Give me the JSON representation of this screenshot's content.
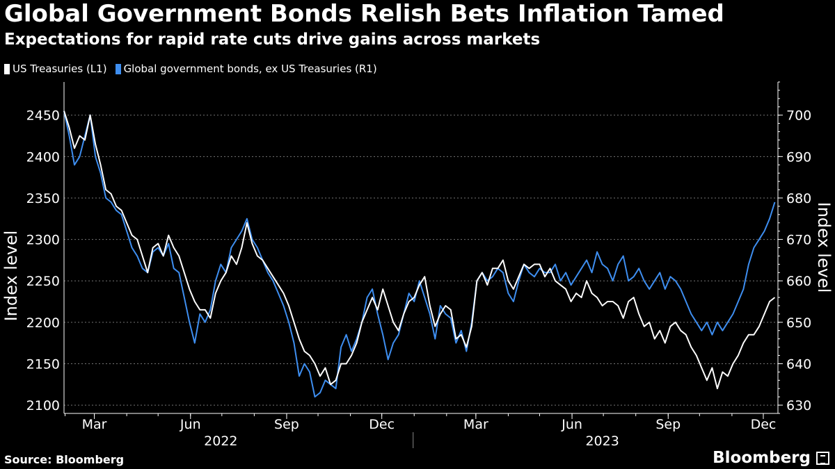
{
  "chart_data": {
    "type": "line",
    "title": "Global Government Bonds Relish Bets Inflation Tamed",
    "subtitle": "Expectations for rapid rate cuts drive gains across markets",
    "ylabel_left": "Index level",
    "ylabel_right": "Index level",
    "ylim_left": [
      2090,
      2490
    ],
    "ylim_right": [
      628,
      708
    ],
    "yticks_left": [
      2100,
      2150,
      2200,
      2250,
      2300,
      2350,
      2400,
      2450
    ],
    "yticks_right": [
      630,
      640,
      650,
      660,
      670,
      680,
      690,
      700
    ],
    "xlim": [
      "2022-01-31",
      "2023-12-15"
    ],
    "xticks": [
      {
        "date": "2022-03-01",
        "label": "Mar"
      },
      {
        "date": "2022-06-01",
        "label": "Jun"
      },
      {
        "date": "2022-09-01",
        "label": "Sep"
      },
      {
        "date": "2022-12-01",
        "label": "Dec"
      },
      {
        "date": "2023-03-01",
        "label": "Mar"
      },
      {
        "date": "2023-06-01",
        "label": "Jun"
      },
      {
        "date": "2023-09-01",
        "label": "Sep"
      },
      {
        "date": "2023-12-01",
        "label": "Dec"
      }
    ],
    "years": [
      {
        "label": "2022",
        "center": "2022-06-30"
      },
      {
        "label": "2023",
        "center": "2023-06-30"
      }
    ],
    "year_divider": "2022-12-31",
    "grid": true,
    "legend_position": "top-left",
    "series": [
      {
        "name": "US Treasuries (L1)",
        "axis": "left",
        "color": "#ffffff",
        "x": [
          "2022-01-31",
          "2022-02-05",
          "2022-02-10",
          "2022-02-15",
          "2022-02-20",
          "2022-02-25",
          "2022-03-02",
          "2022-03-07",
          "2022-03-12",
          "2022-03-17",
          "2022-03-22",
          "2022-03-27",
          "2022-04-01",
          "2022-04-06",
          "2022-04-11",
          "2022-04-16",
          "2022-04-21",
          "2022-04-26",
          "2022-05-01",
          "2022-05-06",
          "2022-05-11",
          "2022-05-16",
          "2022-05-21",
          "2022-05-26",
          "2022-05-31",
          "2022-06-05",
          "2022-06-10",
          "2022-06-15",
          "2022-06-20",
          "2022-06-25",
          "2022-06-30",
          "2022-07-05",
          "2022-07-10",
          "2022-07-15",
          "2022-07-20",
          "2022-07-25",
          "2022-07-30",
          "2022-08-04",
          "2022-08-09",
          "2022-08-14",
          "2022-08-19",
          "2022-08-24",
          "2022-08-29",
          "2022-09-03",
          "2022-09-08",
          "2022-09-13",
          "2022-09-18",
          "2022-09-23",
          "2022-09-28",
          "2022-10-03",
          "2022-10-08",
          "2022-10-13",
          "2022-10-18",
          "2022-10-23",
          "2022-10-28",
          "2022-11-02",
          "2022-11-07",
          "2022-11-12",
          "2022-11-17",
          "2022-11-22",
          "2022-11-27",
          "2022-12-02",
          "2022-12-07",
          "2022-12-12",
          "2022-12-17",
          "2022-12-22",
          "2022-12-27",
          "2023-01-01",
          "2023-01-06",
          "2023-01-11",
          "2023-01-16",
          "2023-01-21",
          "2023-01-26",
          "2023-01-31",
          "2023-02-05",
          "2023-02-10",
          "2023-02-15",
          "2023-02-20",
          "2023-02-25",
          "2023-03-02",
          "2023-03-07",
          "2023-03-12",
          "2023-03-17",
          "2023-03-22",
          "2023-03-27",
          "2023-04-01",
          "2023-04-06",
          "2023-04-11",
          "2023-04-16",
          "2023-04-21",
          "2023-04-26",
          "2023-05-01",
          "2023-05-06",
          "2023-05-11",
          "2023-05-16",
          "2023-05-21",
          "2023-05-26",
          "2023-05-31",
          "2023-06-05",
          "2023-06-10",
          "2023-06-15",
          "2023-06-20",
          "2023-06-25",
          "2023-06-30",
          "2023-07-05",
          "2023-07-10",
          "2023-07-15",
          "2023-07-20",
          "2023-07-25",
          "2023-07-30",
          "2023-08-04",
          "2023-08-09",
          "2023-08-14",
          "2023-08-19",
          "2023-08-24",
          "2023-08-29",
          "2023-09-03",
          "2023-09-08",
          "2023-09-13",
          "2023-09-18",
          "2023-09-23",
          "2023-09-28",
          "2023-10-03",
          "2023-10-08",
          "2023-10-13",
          "2023-10-18",
          "2023-10-23",
          "2023-10-28",
          "2023-11-02",
          "2023-11-07",
          "2023-11-12",
          "2023-11-17",
          "2023-11-22",
          "2023-11-27",
          "2023-12-02",
          "2023-12-07",
          "2023-12-12"
        ],
        "values": [
          2455,
          2435,
          2410,
          2425,
          2420,
          2450,
          2415,
          2390,
          2360,
          2355,
          2340,
          2335,
          2320,
          2305,
          2300,
          2280,
          2260,
          2290,
          2295,
          2280,
          2305,
          2290,
          2280,
          2260,
          2240,
          2225,
          2215,
          2215,
          2205,
          2235,
          2250,
          2260,
          2280,
          2270,
          2290,
          2320,
          2295,
          2280,
          2275,
          2265,
          2255,
          2245,
          2235,
          2220,
          2200,
          2180,
          2165,
          2160,
          2150,
          2135,
          2145,
          2125,
          2130,
          2150,
          2150,
          2160,
          2175,
          2200,
          2215,
          2230,
          2215,
          2240,
          2220,
          2200,
          2190,
          2210,
          2225,
          2230,
          2245,
          2255,
          2220,
          2195,
          2210,
          2220,
          2215,
          2180,
          2185,
          2170,
          2195,
          2250,
          2260,
          2245,
          2265,
          2265,
          2275,
          2250,
          2240,
          2255,
          2270,
          2265,
          2270,
          2270,
          2255,
          2265,
          2250,
          2245,
          2240,
          2225,
          2235,
          2230,
          2250,
          2235,
          2230,
          2220,
          2225,
          2225,
          2220,
          2205,
          2225,
          2230,
          2210,
          2195,
          2200,
          2180,
          2190,
          2175,
          2195,
          2200,
          2190,
          2185,
          2170,
          2160,
          2145,
          2130,
          2145,
          2120,
          2140,
          2135,
          2150,
          2160,
          2175,
          2185,
          2185,
          2195,
          2210,
          2225,
          2230
        ]
      },
      {
        "name": "Global government bonds, ex US Treasuries (R1)",
        "axis": "right",
        "color": "#3e8ef0",
        "x": [
          "2022-01-31",
          "2022-02-05",
          "2022-02-10",
          "2022-02-15",
          "2022-02-20",
          "2022-02-25",
          "2022-03-02",
          "2022-03-07",
          "2022-03-12",
          "2022-03-17",
          "2022-03-22",
          "2022-03-27",
          "2022-04-01",
          "2022-04-06",
          "2022-04-11",
          "2022-04-16",
          "2022-04-21",
          "2022-04-26",
          "2022-05-01",
          "2022-05-06",
          "2022-05-11",
          "2022-05-16",
          "2022-05-21",
          "2022-05-26",
          "2022-05-31",
          "2022-06-05",
          "2022-06-10",
          "2022-06-15",
          "2022-06-20",
          "2022-06-25",
          "2022-06-30",
          "2022-07-05",
          "2022-07-10",
          "2022-07-15",
          "2022-07-20",
          "2022-07-25",
          "2022-07-30",
          "2022-08-04",
          "2022-08-09",
          "2022-08-14",
          "2022-08-19",
          "2022-08-24",
          "2022-08-29",
          "2022-09-03",
          "2022-09-08",
          "2022-09-13",
          "2022-09-18",
          "2022-09-23",
          "2022-09-28",
          "2022-10-03",
          "2022-10-08",
          "2022-10-13",
          "2022-10-18",
          "2022-10-23",
          "2022-10-28",
          "2022-11-02",
          "2022-11-07",
          "2022-11-12",
          "2022-11-17",
          "2022-11-22",
          "2022-11-27",
          "2022-12-02",
          "2022-12-07",
          "2022-12-12",
          "2022-12-17",
          "2022-12-22",
          "2022-12-27",
          "2023-01-01",
          "2023-01-06",
          "2023-01-11",
          "2023-01-16",
          "2023-01-21",
          "2023-01-26",
          "2023-01-31",
          "2023-02-05",
          "2023-02-10",
          "2023-02-15",
          "2023-02-20",
          "2023-02-25",
          "2023-03-02",
          "2023-03-07",
          "2023-03-12",
          "2023-03-17",
          "2023-03-22",
          "2023-03-27",
          "2023-04-01",
          "2023-04-06",
          "2023-04-11",
          "2023-04-16",
          "2023-04-21",
          "2023-04-26",
          "2023-05-01",
          "2023-05-06",
          "2023-05-11",
          "2023-05-16",
          "2023-05-21",
          "2023-05-26",
          "2023-05-31",
          "2023-06-05",
          "2023-06-10",
          "2023-06-15",
          "2023-06-20",
          "2023-06-25",
          "2023-06-30",
          "2023-07-05",
          "2023-07-10",
          "2023-07-15",
          "2023-07-20",
          "2023-07-25",
          "2023-07-30",
          "2023-08-04",
          "2023-08-09",
          "2023-08-14",
          "2023-08-19",
          "2023-08-24",
          "2023-08-29",
          "2023-09-03",
          "2023-09-08",
          "2023-09-13",
          "2023-09-18",
          "2023-09-23",
          "2023-09-28",
          "2023-10-03",
          "2023-10-08",
          "2023-10-13",
          "2023-10-18",
          "2023-10-23",
          "2023-10-28",
          "2023-11-02",
          "2023-11-07",
          "2023-11-12",
          "2023-11-17",
          "2023-11-22",
          "2023-11-27",
          "2023-12-02",
          "2023-12-07",
          "2023-12-12"
        ],
        "values": [
          701,
          695,
          688,
          690,
          695,
          700,
          690,
          686,
          680,
          679,
          677,
          676,
          672,
          668,
          666,
          663,
          662,
          667,
          668,
          666,
          669,
          663,
          662,
          656,
          650,
          645,
          652,
          650,
          653,
          660,
          664,
          662,
          668,
          670,
          672,
          675,
          670,
          668,
          665,
          662,
          660,
          657,
          654,
          650,
          645,
          637,
          640,
          638,
          632,
          633,
          636,
          635,
          634,
          644,
          647,
          643,
          646,
          650,
          656,
          658,
          652,
          647,
          641,
          645,
          647,
          652,
          657,
          655,
          660,
          656,
          652,
          646,
          654,
          652,
          651,
          645,
          648,
          643,
          650,
          660,
          662,
          660,
          661,
          663,
          662,
          657,
          655,
          660,
          664,
          662,
          661,
          663,
          662,
          662,
          664,
          660,
          662,
          659,
          661,
          663,
          665,
          662,
          667,
          664,
          663,
          660,
          664,
          666,
          660,
          661,
          663,
          660,
          658,
          660,
          662,
          658,
          661,
          660,
          658,
          655,
          652,
          650,
          648,
          650,
          647,
          650,
          648,
          650,
          652,
          655,
          658,
          664,
          668,
          670,
          672,
          675,
          679
        ]
      }
    ]
  },
  "legend": {
    "items": [
      {
        "label": "US Treasuries (L1)",
        "color": "#ffffff"
      },
      {
        "label": "Global government bonds, ex US Treasuries (R1)",
        "color": "#3e8ef0"
      }
    ]
  },
  "footer": {
    "source": "Source: Bloomberg",
    "brand": "Bloomberg"
  }
}
